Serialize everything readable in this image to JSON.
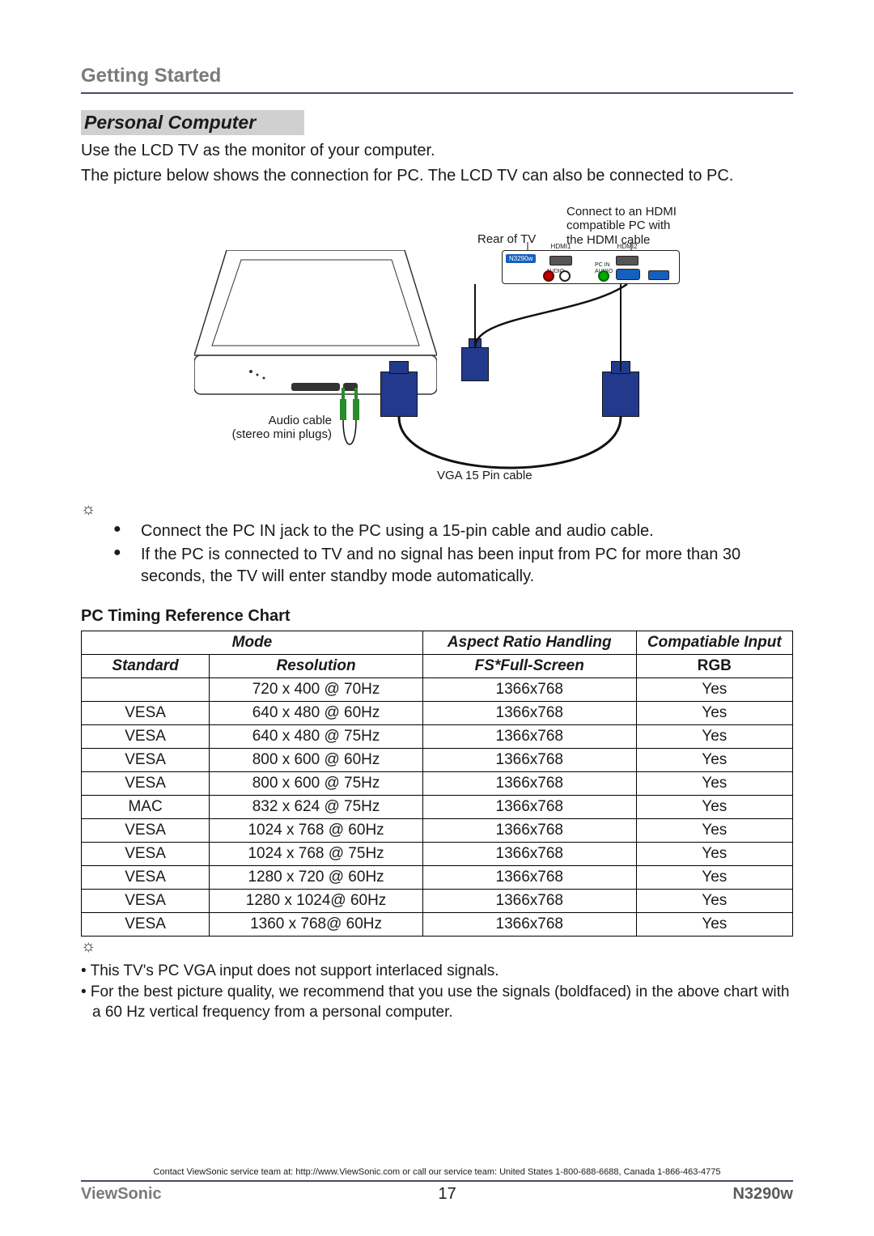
{
  "header": {
    "section": "Getting Started"
  },
  "pc": {
    "title": "Personal Computer",
    "intro1": "Use the LCD TV as the monitor of your computer.",
    "intro2": "The picture below shows the connection for PC. The LCD TV can also be connected to PC."
  },
  "diagram": {
    "rear_of_tv": "Rear of TV",
    "hdmi_note_l1": "Connect to an HDMI",
    "hdmi_note_l2": "compatible PC with",
    "hdmi_note_l3": "the HDMI cable",
    "audio_cable_l1": "Audio cable",
    "audio_cable_l2": "(stereo mini plugs)",
    "vga_cable": "VGA 15 Pin cable",
    "model_badge": "N3290w",
    "ports": {
      "hdmi1": "HDMI1",
      "hdmi2": "HDMI2",
      "pcin": "PC IN",
      "audio": "AUDIO"
    }
  },
  "bullets": {
    "b1": "Connect the PC IN jack to the PC using a 15-pin cable and audio cable.",
    "b2": "If the PC is connected to TV and no signal has been input from PC for more than 30 seconds, the TV will enter standby mode automatically."
  },
  "chart": {
    "title": "PC Timing Reference Chart",
    "headers": {
      "mode": "Mode",
      "aspect": "Aspect Ratio Handling",
      "compat": "Compatiable Input",
      "standard": "Standard",
      "resolution": "Resolution",
      "fs": "FS*Full-Screen",
      "rgb": "RGB"
    },
    "rows": [
      {
        "std": "",
        "res": "720 x 400 @ 70Hz",
        "fs": "1366x768",
        "rgb": "Yes"
      },
      {
        "std": "VESA",
        "res": "640 x 480 @ 60Hz",
        "fs": "1366x768",
        "rgb": "Yes"
      },
      {
        "std": "VESA",
        "res": "640 x 480 @ 75Hz",
        "fs": "1366x768",
        "rgb": "Yes"
      },
      {
        "std": "VESA",
        "res": "800 x 600 @ 60Hz",
        "fs": "1366x768",
        "rgb": "Yes"
      },
      {
        "std": "VESA",
        "res": "800 x 600 @ 75Hz",
        "fs": "1366x768",
        "rgb": "Yes"
      },
      {
        "std": "MAC",
        "res": "832 x 624 @ 75Hz",
        "fs": "1366x768",
        "rgb": "Yes"
      },
      {
        "std": "VESA",
        "res": "1024 x 768 @ 60Hz",
        "fs": "1366x768",
        "rgb": "Yes"
      },
      {
        "std": "VESA",
        "res": "1024 x 768 @ 75Hz",
        "fs": "1366x768",
        "rgb": "Yes"
      },
      {
        "std": "VESA",
        "res": "1280 x 720 @ 60Hz",
        "fs": "1366x768",
        "rgb": "Yes"
      },
      {
        "std": "VESA",
        "res": "1280 x 1024@ 60Hz",
        "fs": "1366x768",
        "rgb": "Yes"
      },
      {
        "std": "VESA",
        "res": "1360 x 768@ 60Hz",
        "fs": "1366x768",
        "rgb": "Yes"
      }
    ]
  },
  "notes": {
    "n1": "• This TV's PC VGA input does not support interlaced signals.",
    "n2": "• For the best picture quality, we recommend that you use the signals (boldfaced) in the above chart with a 60 Hz vertical frequency from a personal computer."
  },
  "footer": {
    "contact": "Contact ViewSonic service team at: http://www.ViewSonic.com or call our service team: United States 1-800-688-6688, Canada 1-866-463-4775",
    "brand": "ViewSonic",
    "page": "17",
    "model": "N3290w"
  },
  "colors": {
    "rule": "#4a4a6a",
    "grey_header": "#7a7a7a",
    "sub_bg": "#d0d0d0",
    "connector_blue": "#233a8c",
    "badge_blue": "#1560bd",
    "plug_green": "#2a8c2a"
  }
}
